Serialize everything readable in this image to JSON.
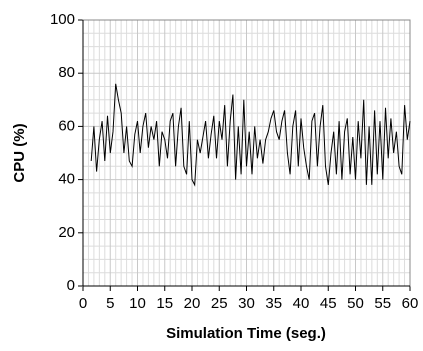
{
  "chart_data": {
    "type": "line",
    "x_label": "Simulation Time (seg.)",
    "y_label": "CPU (%)",
    "x": [
      1.5,
      2,
      2.5,
      3,
      3.5,
      4,
      4.5,
      5,
      5.5,
      6,
      6.5,
      7,
      7.5,
      8,
      8.5,
      9,
      9.5,
      10,
      10.5,
      11,
      11.5,
      12,
      12.5,
      13,
      13.5,
      14,
      14.5,
      15,
      15.5,
      16,
      16.5,
      17,
      17.5,
      18,
      18.5,
      19,
      19.5,
      20,
      20.5,
      21,
      21.5,
      22,
      22.5,
      23,
      23.5,
      24,
      24.5,
      25,
      25.5,
      26,
      26.5,
      27,
      27.5,
      28,
      28.5,
      29,
      29.5,
      30,
      30.5,
      31,
      31.5,
      32,
      32.5,
      33,
      33.5,
      34,
      34.5,
      35,
      35.5,
      36,
      36.5,
      37,
      37.5,
      38,
      38.5,
      39,
      39.5,
      40,
      40.5,
      41,
      41.5,
      42,
      42.5,
      43,
      43.5,
      44,
      44.5,
      45,
      45.5,
      46,
      46.5,
      47,
      47.5,
      48,
      48.5,
      49,
      49.5,
      50,
      50.5,
      51,
      51.5,
      52,
      52.5,
      53,
      53.5,
      54,
      54.5,
      55,
      55.5,
      56,
      56.5,
      57,
      57.5,
      58,
      58.5,
      59,
      59.5,
      60
    ],
    "series": [
      {
        "color": "#000000",
        "values": [
          47,
          60,
          43,
          55,
          62,
          47,
          64,
          50,
          58,
          76,
          70,
          65,
          50,
          60,
          47,
          45,
          57,
          62,
          50,
          60,
          65,
          52,
          60,
          55,
          62,
          45,
          58,
          55,
          48,
          62,
          65,
          45,
          60,
          67,
          45,
          42,
          62,
          40,
          38,
          55,
          50,
          56,
          62,
          48,
          57,
          64,
          48,
          62,
          55,
          68,
          45,
          62,
          72,
          40,
          60,
          42,
          70,
          45,
          58,
          42,
          60,
          48,
          55,
          46,
          55,
          58,
          63,
          66,
          58,
          55,
          62,
          66,
          50,
          42,
          60,
          66,
          45,
          63,
          52,
          45,
          40,
          62,
          65,
          45,
          60,
          68,
          45,
          38,
          50,
          58,
          42,
          62,
          40,
          58,
          63,
          42,
          56,
          40,
          62,
          48,
          70,
          38,
          60,
          38,
          66,
          42,
          62,
          40,
          67,
          48,
          63,
          50,
          58,
          45,
          42,
          68,
          55,
          62
        ]
      }
    ],
    "xlim": [
      0,
      60
    ],
    "xticks": [
      0,
      5,
      10,
      15,
      20,
      25,
      30,
      35,
      40,
      45,
      50,
      55,
      60
    ],
    "ylim": [
      0,
      100
    ],
    "yticks": [
      0,
      20,
      40,
      60,
      80,
      100
    ],
    "grid": true
  }
}
